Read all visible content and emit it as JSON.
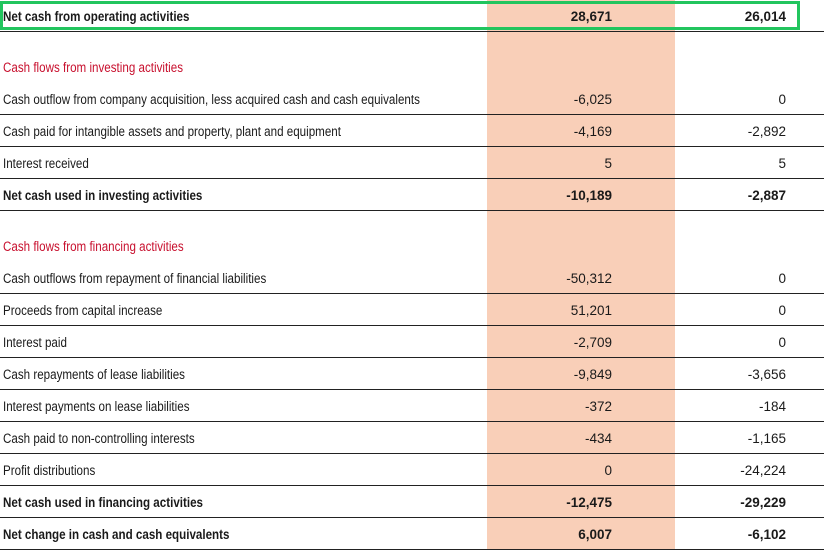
{
  "operating": {
    "label": "Net cash from operating activities",
    "v1": "28,671",
    "v2": "26,014"
  },
  "investing": {
    "title": "Cash flows from investing activities",
    "rows": [
      {
        "label": "Cash outflow from company acquisition, less acquired cash and cash equivalents",
        "v1": "-6,025",
        "v2": "0"
      },
      {
        "label": "Cash paid for intangible assets and property, plant and equipment",
        "v1": "-4,169",
        "v2": "-2,892"
      },
      {
        "label": "Interest received",
        "v1": "5",
        "v2": "5"
      }
    ],
    "total": {
      "label": "Net cash used in investing activities",
      "v1": "-10,189",
      "v2": "-2,887"
    }
  },
  "financing": {
    "title": "Cash flows from financing activities",
    "rows": [
      {
        "label": "Cash outflows from repayment of financial liabilities",
        "v1": "-50,312",
        "v2": "0"
      },
      {
        "label": "Proceeds from capital increase",
        "v1": "51,201",
        "v2": "0"
      },
      {
        "label": "Interest paid",
        "v1": "-2,709",
        "v2": "0"
      },
      {
        "label": "Cash repayments of lease liabilities",
        "v1": "-9,849",
        "v2": "-3,656"
      },
      {
        "label": "Interest payments on lease liabilities",
        "v1": "-372",
        "v2": "-184"
      },
      {
        "label": "Cash paid to non-controlling interests",
        "v1": "-434",
        "v2": "-1,165"
      },
      {
        "label": "Profit distributions",
        "v1": "0",
        "v2": "-24,224"
      }
    ],
    "total": {
      "label": "Net cash used in financing activities",
      "v1": "-12,475",
      "v2": "-29,229"
    }
  },
  "net_change": {
    "label": "Net change in cash and cash equivalents",
    "v1": "6,007",
    "v2": "-6,102"
  },
  "colors": {
    "shaded_column": "#f9cfb8",
    "section_title": "#c8102e",
    "highlight_box": "#22c55e"
  }
}
